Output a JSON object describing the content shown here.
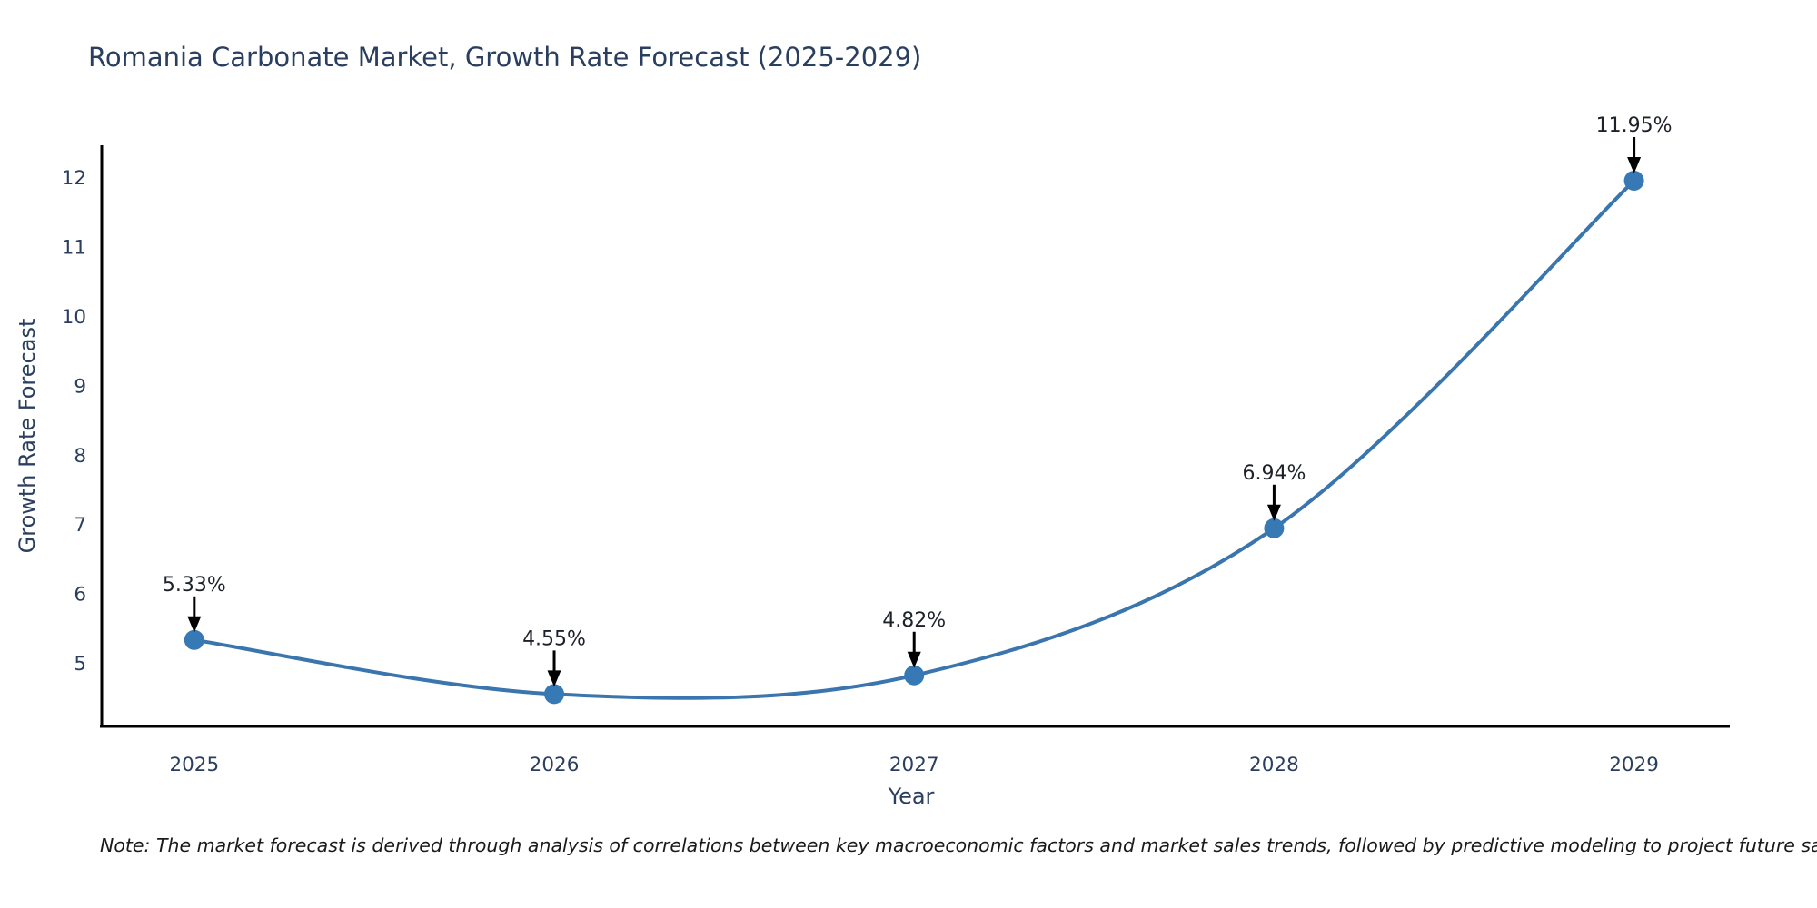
{
  "title": "Romania Carbonate Market, Growth Rate Forecast (2025-2029)",
  "note": "Note: The market forecast is derived through analysis of correlations between key macroeconomic factors and market sales trends, followed by predictive modeling to project future sales",
  "chart_data": {
    "type": "line",
    "title": "Romania Carbonate Market, Growth Rate Forecast (2025-2029)",
    "xlabel": "Year",
    "ylabel": "Growth Rate Forecast",
    "x": [
      2025,
      2026,
      2027,
      2028,
      2029
    ],
    "values": [
      5.33,
      4.55,
      4.82,
      6.94,
      11.95
    ],
    "point_labels": [
      "5.33%",
      "4.55%",
      "4.82%",
      "6.94%",
      "11.95%"
    ],
    "yticks": [
      5,
      6,
      7,
      8,
      9,
      10,
      11,
      12
    ],
    "xlim": [
      2024.743,
      2029.266
    ],
    "ylim": [
      4.084,
      12.46
    ],
    "grid": false,
    "legend": "none",
    "curve": "spline",
    "line_color": "#3a76ad",
    "marker_color": "#3679b5",
    "arrow_color": "#000000",
    "annotation_color": "#1d2129",
    "axis_line_color": "#000000",
    "tick_label_color": "#2a3f5f",
    "title_color": "#2a3f5f",
    "background_color": "#ffffff"
  }
}
